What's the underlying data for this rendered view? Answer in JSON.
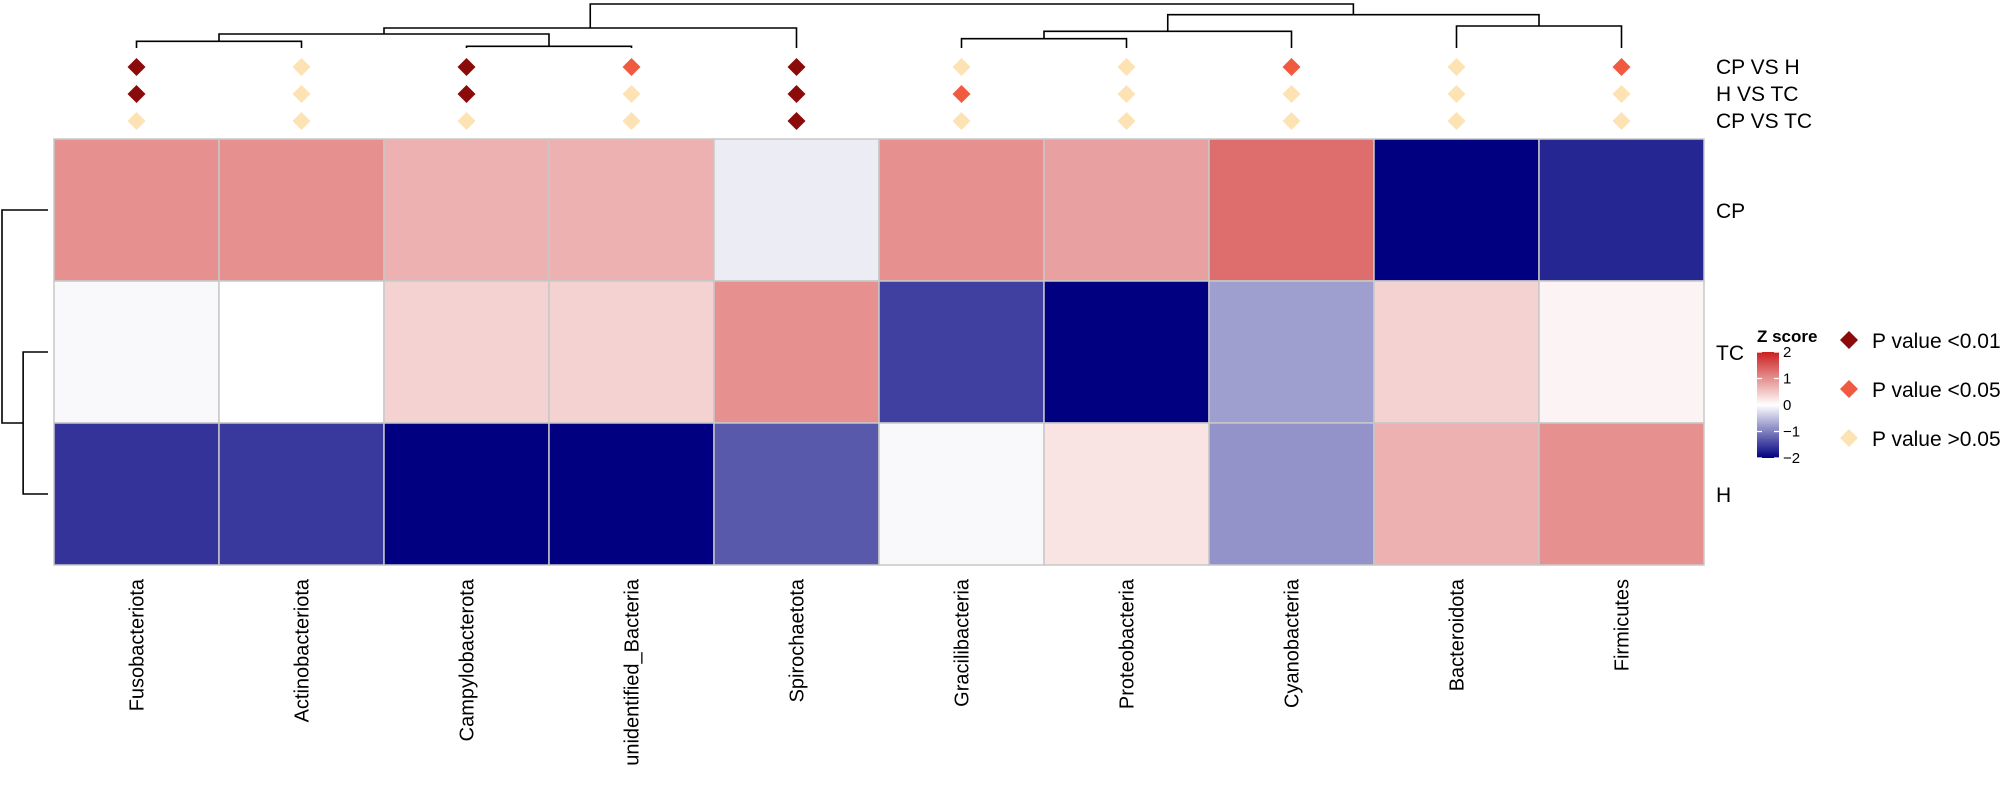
{
  "chart_data": {
    "type": "heatmap",
    "title": "",
    "columns": [
      "Fusobacteriota",
      "Actinobacteriota",
      "Campylobacterota",
      "unidentified_Bacteria",
      "Spirochaetota",
      "Gracilibacteria",
      "Proteobacteria",
      "Cyanobacteria",
      "Bacteroidota",
      "Firmicutes"
    ],
    "rows": [
      "CP",
      "TC",
      "H"
    ],
    "values": [
      [
        1.0,
        1.0,
        0.7,
        0.7,
        -0.15,
        1.0,
        0.85,
        1.3,
        -2.0,
        -1.7
      ],
      [
        -0.05,
        0.0,
        0.4,
        0.4,
        1.0,
        -1.5,
        -2.0,
        -0.75,
        0.4,
        0.1
      ],
      [
        -1.6,
        -1.55,
        -2.0,
        -2.0,
        -1.3,
        -0.05,
        0.25,
        -0.85,
        0.7,
        1.0
      ]
    ],
    "color_scale": {
      "title": "Z score",
      "min": -2,
      "max": 2,
      "ticks": [
        2,
        1,
        0,
        -1,
        -2
      ],
      "tick_labels": [
        "2",
        "1",
        "0",
        "−1",
        "−2"
      ],
      "low_color": "#000080",
      "mid_color": "#ffffff",
      "high_color": "#cc2020"
    },
    "comparisons": [
      "CP VS H",
      "H VS TC",
      "CP VS TC"
    ],
    "significance": [
      [
        "p01",
        "p05x",
        "p01",
        "p05",
        "p01",
        "p05x",
        "p05x",
        "p05",
        "p05x",
        "p05"
      ],
      [
        "p01",
        "p05x",
        "p01",
        "p05x",
        "p01",
        "p05",
        "p05x",
        "p05x",
        "p05x",
        "p05x"
      ],
      [
        "p05x",
        "p05x",
        "p05x",
        "p05x",
        "p01",
        "p05x",
        "p05x",
        "p05x",
        "p05x",
        "p05x"
      ]
    ],
    "significance_legend": [
      {
        "key": "p01",
        "label": "P value <0.01",
        "color": "#8b0a0a"
      },
      {
        "key": "p05",
        "label": "P value <0.05",
        "color": "#f05a40"
      },
      {
        "key": "p05x",
        "label": "P value >0.05",
        "color": "#fde3b4"
      }
    ],
    "column_dendrogram": [
      [
        0,
        1,
        1
      ],
      [
        2,
        3,
        0.25
      ],
      [
        10,
        11,
        2.1
      ],
      [
        12,
        4,
        3.0
      ],
      [
        5,
        6,
        1.4
      ],
      [
        14,
        7,
        2.5
      ],
      [
        8,
        9,
        3.3
      ],
      [
        15,
        16,
        5.0
      ],
      [
        13,
        17,
        6.6
      ]
    ],
    "row_dendrogram": [
      [
        1,
        2,
        2.0
      ],
      [
        0,
        3,
        3.7
      ]
    ]
  }
}
